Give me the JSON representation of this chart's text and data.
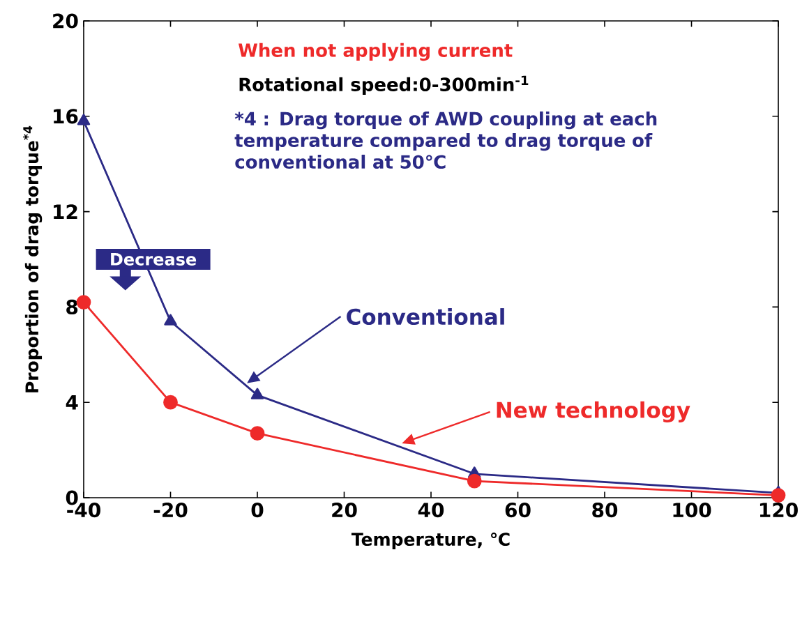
{
  "chart_data": {
    "type": "line",
    "xlabel": "Temperature, ℃",
    "ylabel": "Proportion of drag torque$^{*4}$",
    "x": [
      -40,
      -20,
      0,
      50,
      120
    ],
    "series": [
      {
        "name": "Conventional",
        "color": "#2b2a86",
        "marker": "triangle",
        "values": [
          15.8,
          7.4,
          4.3,
          1.0,
          0.2
        ]
      },
      {
        "name": "New technology",
        "color": "#ee2a2a",
        "marker": "circle",
        "values": [
          8.2,
          4.0,
          2.7,
          0.7,
          0.1
        ]
      }
    ],
    "xlim": [
      -40,
      120
    ],
    "xticks": [
      -40,
      -20,
      0,
      20,
      40,
      60,
      80,
      100,
      120
    ],
    "ylim": [
      0,
      20
    ],
    "yticks": [
      0,
      4,
      8,
      12,
      16,
      20
    ],
    "grid": false,
    "legend": "center",
    "line_style": "solid",
    "annotations": [
      "When not applying current",
      "Rotational speed:0-300min$^{-1}$",
      "*4 : Drag torque of AWD coupling at each temperature compared to drag torque of conventional at 50℃",
      "Decrease"
    ]
  }
}
